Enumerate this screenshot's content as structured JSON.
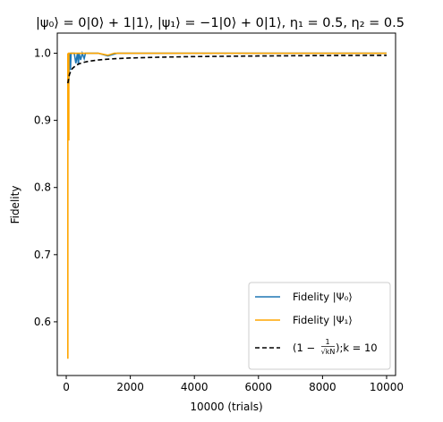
{
  "chart_data": {
    "type": "line",
    "title": "|ψ₀⟩ = 0|0⟩ + 1|1⟩, |ψ₁⟩ = −1|0⟩ + 0|1⟩, η₁ = 0.5, η₂ = 0.5",
    "xlabel": "10000 (trials)",
    "ylabel": "Fidelity",
    "xlim": [
      -280,
      10280
    ],
    "ylim": [
      0.52,
      1.03
    ],
    "xticks": [
      0,
      2000,
      4000,
      6000,
      8000,
      10000
    ],
    "yticks": [
      0.6,
      0.7,
      0.8,
      0.9,
      1.0
    ],
    "xtick_labels": [
      "0",
      "2000",
      "4000",
      "6000",
      "8000",
      "10000"
    ],
    "ytick_labels": [
      "0.6",
      "0.7",
      "0.8",
      "0.9",
      "1.0"
    ],
    "grid": false,
    "legend_position": "bottom-right",
    "colors": {
      "psi0": "#1f77b4",
      "psi1": "#ffa500",
      "bound": "#000000"
    },
    "series": [
      {
        "name": "Fidelity |Ψ₀⟩",
        "color": "#1f77b4",
        "x": [
          50,
          80,
          100,
          130,
          150,
          200,
          250,
          300,
          350,
          380,
          400,
          450,
          500,
          560,
          600,
          700,
          800,
          1000,
          1300,
          1600,
          2000,
          3000,
          4000,
          5000,
          6000,
          7000,
          8000,
          9000,
          10000
        ],
        "y": [
          1.0,
          0.955,
          1.0,
          0.975,
          1.0,
          1.0,
          1.0,
          0.985,
          1.0,
          0.983,
          1.0,
          0.99,
          1.0,
          0.992,
          1.0,
          1.0,
          1.0,
          1.0,
          0.996,
          1.0,
          1.0,
          1.0,
          1.0,
          1.0,
          1.0,
          1.0,
          1.0,
          1.0,
          1.0
        ]
      },
      {
        "name": "Fidelity |Ψ₁⟩",
        "color": "#ffa500",
        "x": [
          50,
          50,
          80,
          80,
          100,
          200,
          300,
          400,
          600,
          1000,
          1300,
          1500,
          2000,
          4000,
          6000,
          8000,
          10000
        ],
        "y": [
          0.545,
          1.0,
          0.87,
          1.0,
          1.0,
          1.0,
          1.0,
          1.0,
          1.0,
          1.0,
          0.997,
          1.0,
          1.0,
          1.0,
          1.0,
          1.0,
          1.0
        ]
      },
      {
        "name": "(1 − 1/√(kN)); k = 10",
        "color": "#000000",
        "dashed": true,
        "x": [
          50,
          100,
          150,
          200,
          300,
          400,
          500,
          700,
          1000,
          1500,
          2000,
          3000,
          4000,
          5000,
          6000,
          7000,
          8000,
          9000,
          10000
        ],
        "y": [
          0.9553,
          0.9684,
          0.9742,
          0.9776,
          0.9817,
          0.9842,
          0.9859,
          0.988,
          0.99,
          0.9918,
          0.9929,
          0.9942,
          0.995,
          0.9955,
          0.9959,
          0.9962,
          0.9965,
          0.9967,
          0.9968
        ]
      }
    ],
    "legend": {
      "psi0_label": "Fidelity |Ψ₀⟩",
      "psi1_label": "Fidelity |Ψ₁⟩",
      "bound_prefix": "(1 −",
      "bound_frac_num": "1",
      "bound_frac_den": "√kN",
      "bound_suffix": ");k = 10"
    }
  }
}
